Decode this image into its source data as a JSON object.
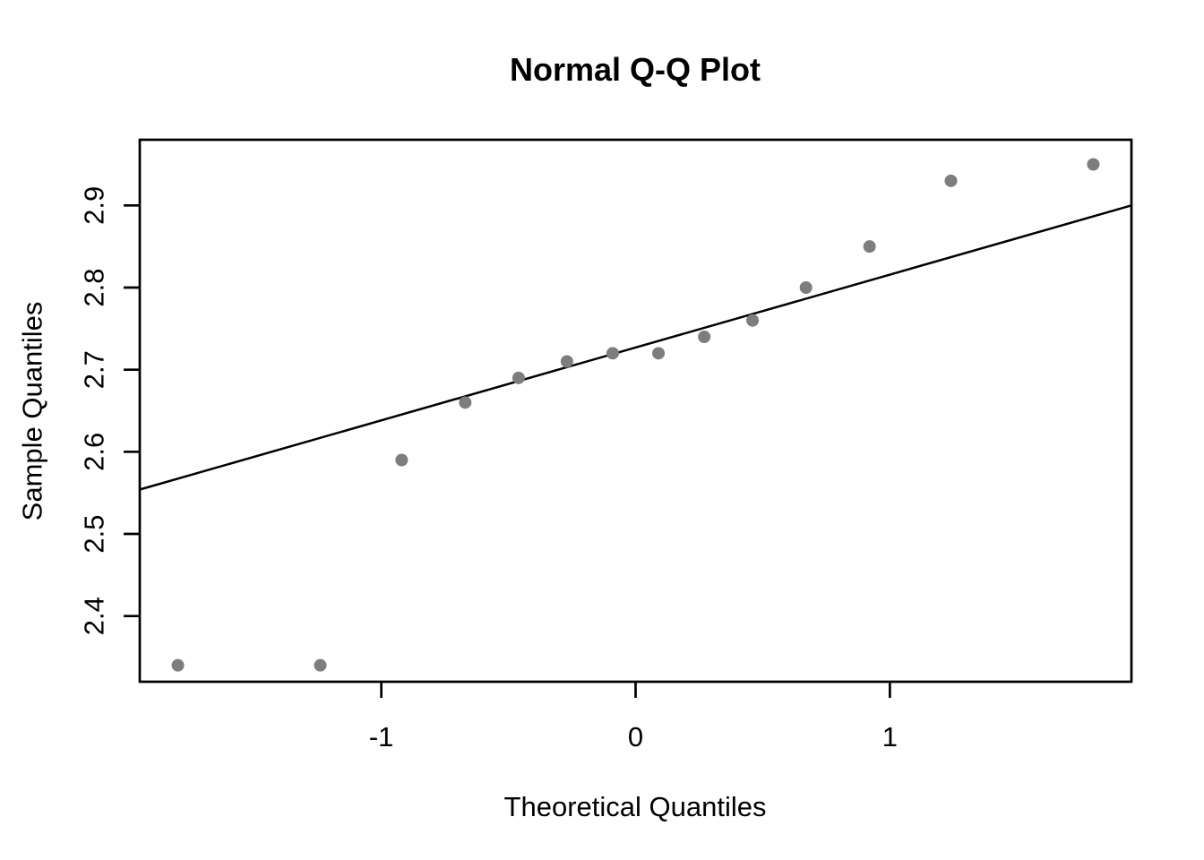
{
  "chart_data": {
    "type": "scatter",
    "title": "Normal Q-Q Plot",
    "xlabel": "Theoretical Quantiles",
    "ylabel": "Sample Quantiles",
    "x_ticks": [
      "-1",
      "0",
      "1"
    ],
    "x_tick_values": [
      -1,
      0,
      1
    ],
    "y_ticks": [
      "2.4",
      "2.5",
      "2.6",
      "2.7",
      "2.8",
      "2.9"
    ],
    "y_tick_values": [
      2.4,
      2.5,
      2.6,
      2.7,
      2.8,
      2.9
    ],
    "xlim": [
      -1.95,
      1.95
    ],
    "ylim": [
      2.32,
      2.98
    ],
    "grid": false,
    "legend": null,
    "background": "#ffffff",
    "axis_color": "#000000",
    "series": [
      {
        "name": "sample-quantile-points",
        "marker": "filled-circle",
        "color": "#7d7d7d",
        "x": [
          -1.8,
          -1.24,
          -0.92,
          -0.67,
          -0.46,
          -0.27,
          -0.09,
          0.09,
          0.27,
          0.46,
          0.67,
          0.92,
          1.24,
          1.8
        ],
        "y": [
          2.34,
          2.34,
          2.59,
          2.66,
          2.69,
          2.71,
          2.72,
          2.72,
          2.74,
          2.76,
          2.8,
          2.85,
          2.93,
          2.95
        ]
      }
    ],
    "reference_line": {
      "name": "qq-line",
      "color": "#000000",
      "x1": -1.95,
      "y1": 2.554,
      "x2": 1.95,
      "y2": 2.9
    }
  }
}
